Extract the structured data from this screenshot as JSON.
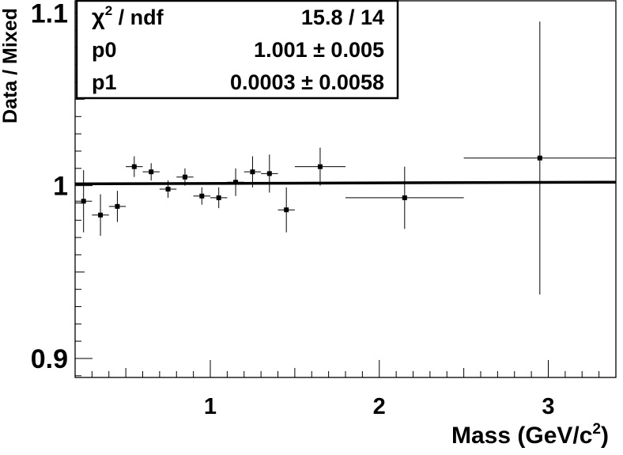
{
  "chart_data": {
    "type": "scatter",
    "xlabel": "Mass (GeV/c",
    "xlabel_sup": "2",
    "xlabel_close": ")",
    "ylabel": "Data / Mixed",
    "xlim": [
      0.2,
      3.4
    ],
    "ylim": [
      0.889,
      1.107
    ],
    "x_major_ticks": [
      1,
      2,
      3
    ],
    "x_tick_labels": [
      "1",
      "2",
      "3"
    ],
    "y_major_ticks": [
      0.9,
      1.0,
      1.1
    ],
    "y_tick_labels": [
      "0.9",
      "1",
      "1.1"
    ],
    "grid": false,
    "points": [
      {
        "x": 0.25,
        "y": 0.991,
        "xerr": 0.05,
        "yerr": 0.018
      },
      {
        "x": 0.35,
        "y": 0.983,
        "xerr": 0.05,
        "yerr": 0.012
      },
      {
        "x": 0.45,
        "y": 0.988,
        "xerr": 0.05,
        "yerr": 0.009
      },
      {
        "x": 0.55,
        "y": 1.011,
        "xerr": 0.05,
        "yerr": 0.006
      },
      {
        "x": 0.65,
        "y": 1.008,
        "xerr": 0.05,
        "yerr": 0.005
      },
      {
        "x": 0.75,
        "y": 0.998,
        "xerr": 0.05,
        "yerr": 0.005
      },
      {
        "x": 0.85,
        "y": 1.005,
        "xerr": 0.05,
        "yerr": 0.005
      },
      {
        "x": 0.95,
        "y": 0.994,
        "xerr": 0.05,
        "yerr": 0.005
      },
      {
        "x": 1.05,
        "y": 0.993,
        "xerr": 0.05,
        "yerr": 0.006
      },
      {
        "x": 1.15,
        "y": 1.002,
        "xerr": 0.05,
        "yerr": 0.008
      },
      {
        "x": 1.25,
        "y": 1.008,
        "xerr": 0.05,
        "yerr": 0.009
      },
      {
        "x": 1.35,
        "y": 1.007,
        "xerr": 0.05,
        "yerr": 0.011
      },
      {
        "x": 1.45,
        "y": 0.986,
        "xerr": 0.05,
        "yerr": 0.013
      },
      {
        "x": 1.65,
        "y": 1.011,
        "xerr": 0.15,
        "yerr": 0.011
      },
      {
        "x": 2.15,
        "y": 0.993,
        "xerr": 0.35,
        "yerr": 0.018
      },
      {
        "x": 2.95,
        "y": 1.016,
        "xerr": 0.45,
        "yerr": 0.079
      }
    ],
    "fit": {
      "p0": 1.001,
      "p1": 0.0003
    }
  },
  "stats_box": {
    "rows": [
      {
        "label": "χ",
        "label_sup": "2",
        "label_rest": " / ndf",
        "value": "15.8 / 14"
      },
      {
        "label": "p0",
        "label_sup": "",
        "label_rest": "",
        "value": "1.001 ± 0.005"
      },
      {
        "label": "p1",
        "label_sup": "",
        "label_rest": "",
        "value": "0.0003 ± 0.0058"
      }
    ]
  }
}
